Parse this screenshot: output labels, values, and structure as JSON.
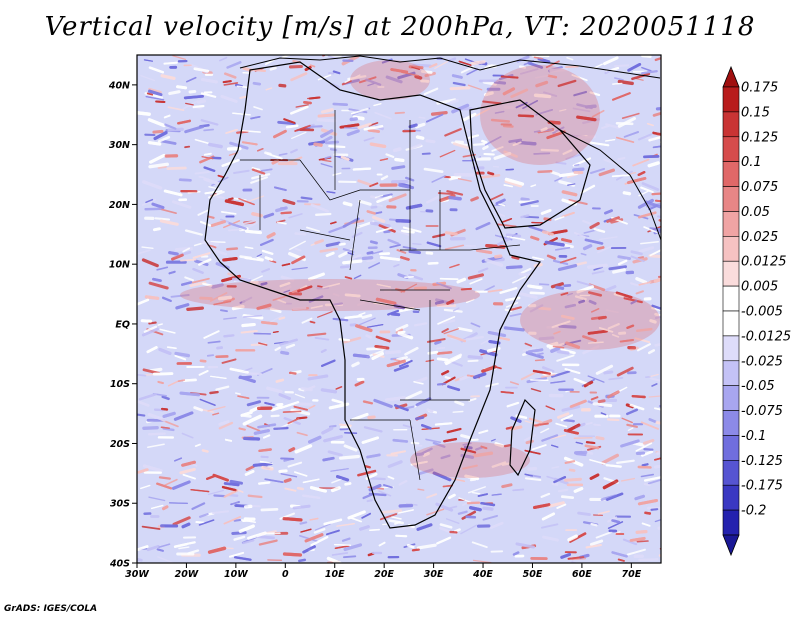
{
  "title": "Vertical velocity [m/s] at 200hPa, VT: 2020051118",
  "credit": "GrADS: IGES/COLA",
  "map": {
    "lon_range": [
      -30,
      76
    ],
    "lat_range": [
      -40,
      45
    ],
    "lon_ticks": [
      {
        "value": -30,
        "label": "30W"
      },
      {
        "value": -20,
        "label": "20W"
      },
      {
        "value": -10,
        "label": "10W"
      },
      {
        "value": 0,
        "label": "0"
      },
      {
        "value": 10,
        "label": "10E"
      },
      {
        "value": 20,
        "label": "20E"
      },
      {
        "value": 30,
        "label": "30E"
      },
      {
        "value": 40,
        "label": "40E"
      },
      {
        "value": 50,
        "label": "50E"
      },
      {
        "value": 60,
        "label": "60E"
      },
      {
        "value": 70,
        "label": "70E"
      }
    ],
    "lat_ticks": [
      {
        "value": 40,
        "label": "40N"
      },
      {
        "value": 30,
        "label": "30N"
      },
      {
        "value": 20,
        "label": "20N"
      },
      {
        "value": 10,
        "label": "10N"
      },
      {
        "value": 0,
        "label": "EQ"
      },
      {
        "value": -10,
        "label": "10S"
      },
      {
        "value": -20,
        "label": "20S"
      },
      {
        "value": -30,
        "label": "30S"
      },
      {
        "value": -40,
        "label": "40S"
      }
    ]
  },
  "colorbar": {
    "levels": [
      {
        "label": "0.175",
        "color": "#b81c1c"
      },
      {
        "label": "0.15",
        "color": "#c93434"
      },
      {
        "label": "0.125",
        "color": "#d64c4c"
      },
      {
        "label": "0.1",
        "color": "#e06868"
      },
      {
        "label": "0.075",
        "color": "#e88686"
      },
      {
        "label": "0.05",
        "color": "#f0a4a4"
      },
      {
        "label": "0.025",
        "color": "#f6c2c2"
      },
      {
        "label": "0.0125",
        "color": "#fadcdc"
      },
      {
        "label": "0.005",
        "color": "#ffffff"
      },
      {
        "label": "-0.005",
        "color": "#ffffff"
      },
      {
        "label": "-0.0125",
        "color": "#dedcfa"
      },
      {
        "label": "-0.025",
        "color": "#c4c2f6"
      },
      {
        "label": "-0.05",
        "color": "#a8a6f0"
      },
      {
        "label": "-0.075",
        "color": "#8c8ae8"
      },
      {
        "label": "-0.1",
        "color": "#706ede"
      },
      {
        "label": "-0.125",
        "color": "#5654d2"
      },
      {
        "label": "-0.175",
        "color": "#3a38c2"
      },
      {
        "label": "-0.2",
        "color": "#2422ae"
      }
    ],
    "top_color": "#a01010",
    "bottom_color": "#1a1896"
  },
  "colors": {
    "ocean_base": "#d4d8f8",
    "land_base": "#ece6f6",
    "positive": "#e05a5a",
    "negative": "#6a68e0",
    "coast": "#000000"
  }
}
